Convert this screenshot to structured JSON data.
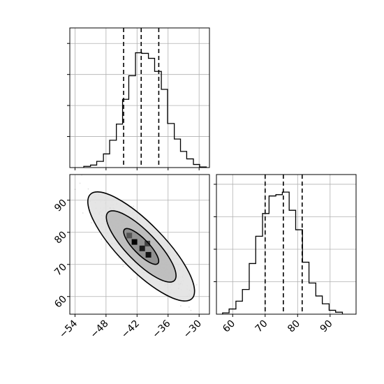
{
  "chart_data": [
    {
      "type": "histogram",
      "panel": "top-left",
      "title": "",
      "xlabel": "",
      "ylabel": "",
      "xlim": [
        -55,
        -28
      ],
      "grid": true,
      "quantiles": [
        -44.6,
        -41.2,
        -37.8
      ],
      "bins": [
        {
          "x0": -52.3,
          "x1": -51.0,
          "count": 2
        },
        {
          "x0": -51.0,
          "x1": -49.8,
          "count": 4
        },
        {
          "x0": -49.8,
          "x1": -48.5,
          "count": 10
        },
        {
          "x0": -48.5,
          "x1": -47.3,
          "count": 22
        },
        {
          "x0": -47.3,
          "x1": -46.0,
          "count": 44
        },
        {
          "x0": -46.0,
          "x1": -44.8,
          "count": 70
        },
        {
          "x0": -44.8,
          "x1": -43.6,
          "count": 110
        },
        {
          "x0": -43.6,
          "x1": -42.3,
          "count": 148
        },
        {
          "x0": -42.3,
          "x1": -41.1,
          "count": 185
        },
        {
          "x0": -41.1,
          "x1": -39.8,
          "count": 184
        },
        {
          "x0": -39.8,
          "x1": -38.6,
          "count": 176
        },
        {
          "x0": -38.6,
          "x1": -37.3,
          "count": 155
        },
        {
          "x0": -37.3,
          "x1": -36.1,
          "count": 126
        },
        {
          "x0": -36.1,
          "x1": -34.8,
          "count": 71
        },
        {
          "x0": -34.8,
          "x1": -33.6,
          "count": 46
        },
        {
          "x0": -33.6,
          "x1": -32.4,
          "count": 26
        },
        {
          "x0": -32.4,
          "x1": -31.1,
          "count": 14
        },
        {
          "x0": -31.1,
          "x1": -29.9,
          "count": 5
        },
        {
          "x0": -29.9,
          "x1": -28.6,
          "count": 1
        }
      ],
      "ylim": [
        0,
        225
      ]
    },
    {
      "type": "scatter+contour",
      "panel": "bottom-left",
      "title": "",
      "xlabel": "",
      "ylabel": "",
      "xlim": [
        -55,
        -28
      ],
      "ylim": [
        54.5,
        98
      ],
      "xticks": [
        "−54",
        "−48",
        "−42",
        "−36",
        "−30"
      ],
      "xtick_values": [
        -54,
        -48,
        -42,
        -36,
        -30
      ],
      "yticks": [
        "60",
        "70",
        "80",
        "90"
      ],
      "ytick_values": [
        60,
        70,
        80,
        90
      ],
      "grid": true,
      "point_cloud": {
        "center": [
          -41.2,
          75.6
        ],
        "sd": [
          3.4,
          5.6
        ],
        "correlation": -0.82,
        "count": 2000
      },
      "contour_levels": [
        0.39,
        0.86,
        0.99
      ],
      "peak_cells": [
        {
          "x": -42.5,
          "y": 77.0,
          "shade": "#000000"
        },
        {
          "x": -41.0,
          "y": 75.0,
          "shade": "#1a1a1a"
        },
        {
          "x": -39.8,
          "y": 73.0,
          "shade": "#111111"
        },
        {
          "x": -40.0,
          "y": 76.5,
          "shade": "#444444"
        },
        {
          "x": -43.5,
          "y": 79.0,
          "shade": "#555555"
        }
      ]
    },
    {
      "type": "histogram",
      "panel": "bottom-right",
      "title": "",
      "xlabel": "",
      "ylabel": "",
      "xlim": [
        55,
        98
      ],
      "xticks": [
        "60",
        "70",
        "80",
        "90"
      ],
      "xtick_values": [
        60,
        70,
        80,
        90
      ],
      "grid": true,
      "quantiles": [
        70.0,
        75.6,
        81.4
      ],
      "bins": [
        {
          "x0": 56.9,
          "x1": 58.9,
          "count": 2
        },
        {
          "x0": 58.9,
          "x1": 61.0,
          "count": 8
        },
        {
          "x0": 61.0,
          "x1": 63.0,
          "count": 20
        },
        {
          "x0": 63.0,
          "x1": 65.1,
          "count": 38
        },
        {
          "x0": 65.1,
          "x1": 67.1,
          "count": 78
        },
        {
          "x0": 67.1,
          "x1": 69.2,
          "count": 120
        },
        {
          "x0": 69.2,
          "x1": 71.2,
          "count": 155
        },
        {
          "x0": 71.2,
          "x1": 73.3,
          "count": 182
        },
        {
          "x0": 73.3,
          "x1": 75.3,
          "count": 184
        },
        {
          "x0": 75.3,
          "x1": 77.4,
          "count": 188
        },
        {
          "x0": 77.4,
          "x1": 79.4,
          "count": 160
        },
        {
          "x0": 79.4,
          "x1": 81.5,
          "count": 130
        },
        {
          "x0": 81.5,
          "x1": 83.5,
          "count": 80
        },
        {
          "x0": 83.5,
          "x1": 85.6,
          "count": 48
        },
        {
          "x0": 85.6,
          "x1": 87.6,
          "count": 28
        },
        {
          "x0": 87.6,
          "x1": 89.7,
          "count": 16
        },
        {
          "x0": 89.7,
          "x1": 91.7,
          "count": 6
        },
        {
          "x0": 91.7,
          "x1": 93.8,
          "count": 3
        }
      ],
      "ylim": [
        0,
        215
      ]
    }
  ],
  "colors": {
    "line": "#000000",
    "grid": "#b0b0b0",
    "points": "#000000",
    "background": "#ffffff"
  }
}
